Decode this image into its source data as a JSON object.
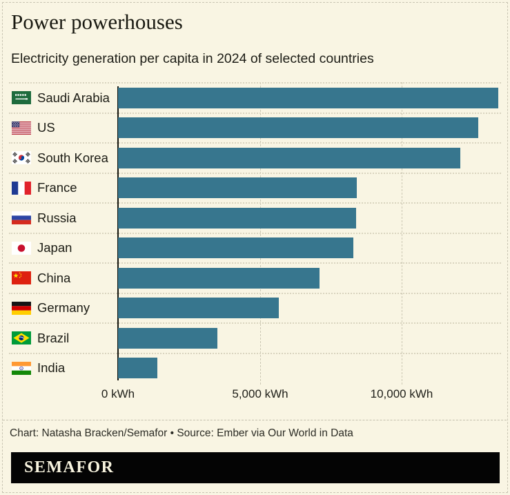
{
  "header": {
    "title": "Power powerhouses",
    "subtitle": "Electricity generation per capita in 2024 of selected countries"
  },
  "chart_data": {
    "type": "bar",
    "orientation": "horizontal",
    "title": "Power powerhouses",
    "subtitle": "Electricity generation per capita in 2024 of selected countries",
    "unit": "kWh",
    "categories": [
      "Saudi Arabia",
      "US",
      "South Korea",
      "France",
      "Russia",
      "Japan",
      "China",
      "Germany",
      "Brazil",
      "India"
    ],
    "values": [
      13400,
      12700,
      12050,
      8400,
      8390,
      8290,
      7100,
      5670,
      3500,
      1390
    ],
    "flags": [
      "sa",
      "us",
      "kr",
      "fr",
      "ru",
      "jp",
      "cn",
      "de",
      "br",
      "in"
    ],
    "x_tick_labels": [
      "0 kWh",
      "5,000 kWh",
      "10,000 kWh"
    ],
    "x_tick_values": [
      0,
      5000,
      10000
    ],
    "xlim": [
      0,
      13490
    ],
    "grid": "dashed vertical gridlines at 5000 and 10000, dotted horizontal row separators",
    "legend": "none",
    "bar_color": "#37768e"
  },
  "footer": {
    "credit": "Chart: Natasha Bracken/Semafor • Source: Ember via Our World in Data",
    "logo": "SEMAFOR"
  },
  "colors": {
    "background": "#f9f5e3",
    "bar": "#37768e",
    "axis_line": "#15150e",
    "gridline": "#cbc7b3",
    "row_separator": "#d9d4bf",
    "logo_background": "#040404",
    "logo_text": "#f8f4df"
  }
}
